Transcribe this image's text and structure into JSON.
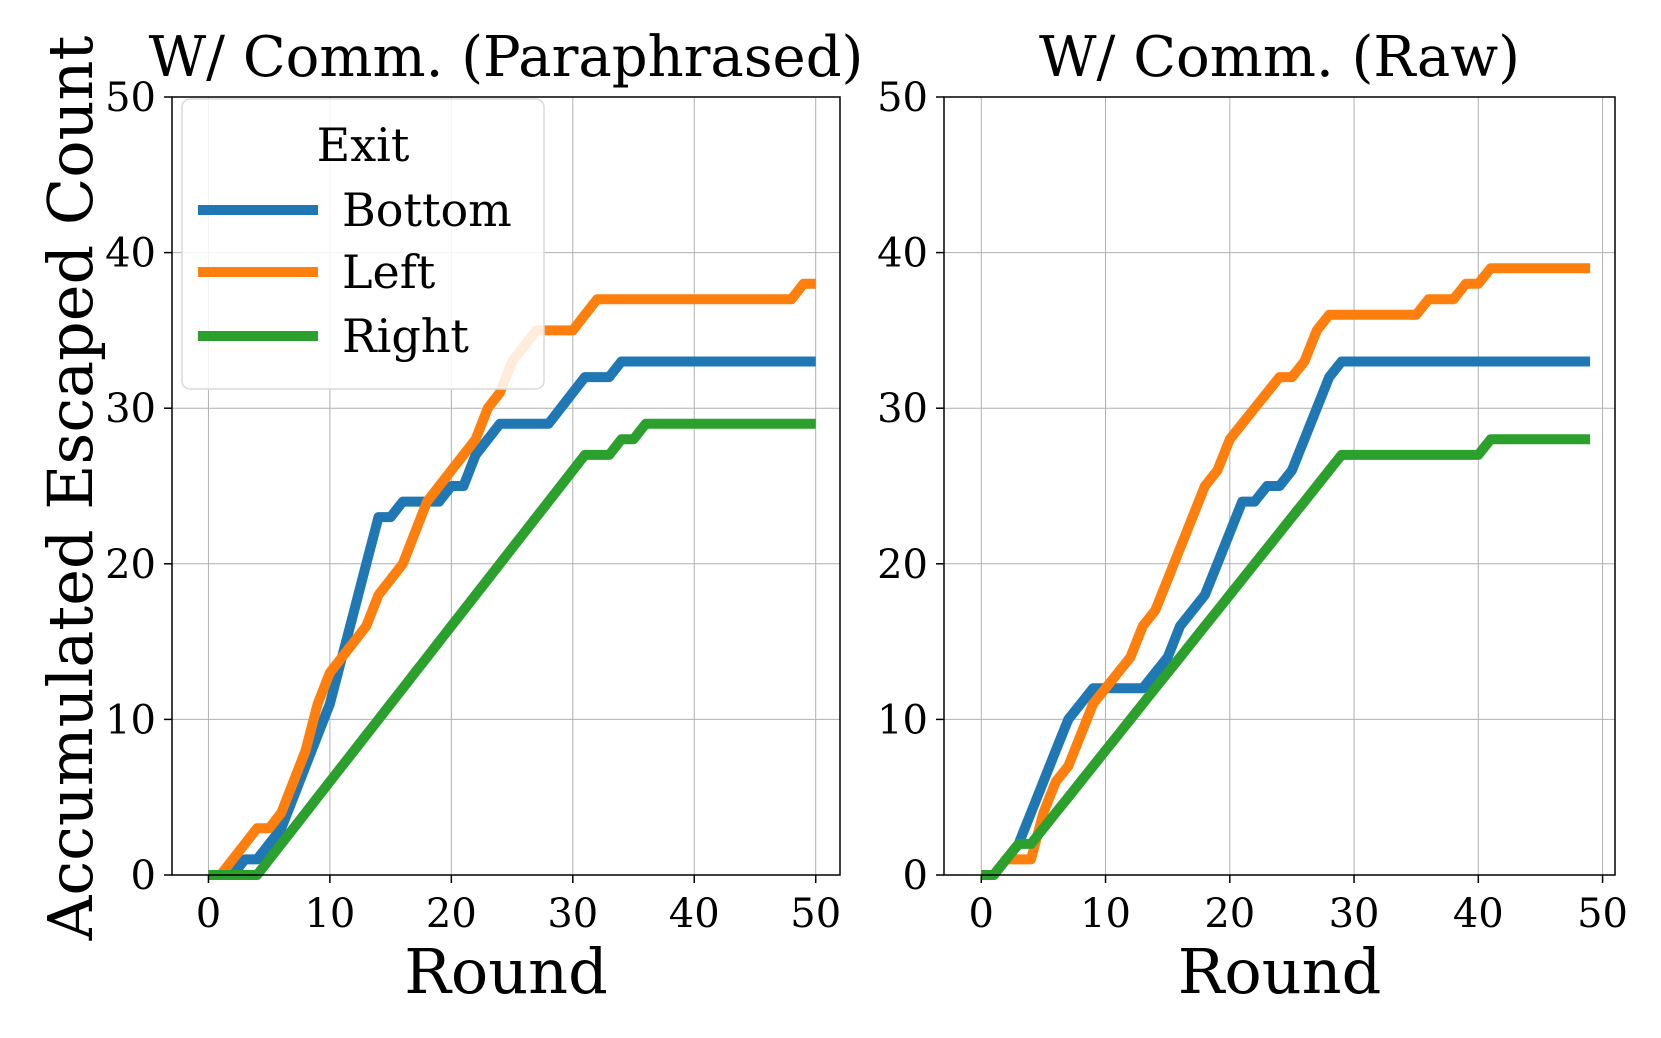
{
  "figure": {
    "ylabel": "Accumulated Escaped Count",
    "legend": {
      "title": "Exit",
      "items": [
        "Bottom",
        "Left",
        "Right"
      ]
    },
    "colors": {
      "Bottom": "#1f77b4",
      "Left": "#ff7f0e",
      "Right": "#2ca02c"
    }
  },
  "chart_data": [
    {
      "type": "line",
      "title": "W/ Comm. (Paraphrased)",
      "xlabel": "Round",
      "ylabel": "Accumulated Escaped Count",
      "xlim": [
        -3,
        52
      ],
      "ylim": [
        0,
        50
      ],
      "xticks": [
        0,
        10,
        20,
        30,
        40,
        50
      ],
      "yticks": [
        0,
        10,
        20,
        30,
        40,
        50
      ],
      "grid": true,
      "legend_position": "upper-left",
      "legend_title": "Exit",
      "series": [
        {
          "name": "Bottom",
          "x": [
            0,
            1,
            2,
            3,
            4,
            5,
            6,
            7,
            8,
            9,
            10,
            11,
            12,
            13,
            14,
            15,
            16,
            17,
            18,
            19,
            20,
            21,
            22,
            23,
            24,
            25,
            26,
            27,
            28,
            29,
            30,
            31,
            32,
            33,
            34,
            35,
            36,
            37,
            38,
            39,
            40,
            41,
            42,
            43,
            44,
            45,
            46,
            47,
            48,
            49,
            50
          ],
          "y": [
            0,
            0,
            0,
            1,
            1,
            2,
            3,
            5,
            7,
            9,
            11,
            14,
            17,
            20,
            23,
            23,
            24,
            24,
            24,
            24,
            25,
            25,
            27,
            28,
            29,
            29,
            29,
            29,
            29,
            30,
            31,
            32,
            32,
            32,
            33,
            33,
            33,
            33,
            33,
            33,
            33,
            33,
            33,
            33,
            33,
            33,
            33,
            33,
            33,
            33,
            33
          ]
        },
        {
          "name": "Left",
          "x": [
            0,
            1,
            2,
            3,
            4,
            5,
            6,
            7,
            8,
            9,
            10,
            11,
            12,
            13,
            14,
            15,
            16,
            17,
            18,
            19,
            20,
            21,
            22,
            23,
            24,
            25,
            26,
            27,
            28,
            29,
            30,
            31,
            32,
            33,
            34,
            35,
            36,
            37,
            38,
            39,
            40,
            41,
            42,
            43,
            44,
            45,
            46,
            47,
            48,
            49,
            50
          ],
          "y": [
            0,
            0,
            1,
            2,
            3,
            3,
            4,
            6,
            8,
            11,
            13,
            14,
            15,
            16,
            18,
            19,
            20,
            22,
            24,
            25,
            26,
            27,
            28,
            30,
            31,
            33,
            34,
            35,
            35,
            35,
            35,
            36,
            37,
            37,
            37,
            37,
            37,
            37,
            37,
            37,
            37,
            37,
            37,
            37,
            37,
            37,
            37,
            37,
            37,
            38,
            38
          ]
        },
        {
          "name": "Right",
          "x": [
            0,
            1,
            2,
            3,
            4,
            5,
            6,
            7,
            8,
            9,
            10,
            11,
            12,
            13,
            14,
            15,
            16,
            17,
            18,
            19,
            20,
            21,
            22,
            23,
            24,
            25,
            26,
            27,
            28,
            29,
            30,
            31,
            32,
            33,
            34,
            35,
            36,
            37,
            38,
            39,
            40,
            41,
            42,
            43,
            44,
            45,
            46,
            47,
            48,
            49,
            50
          ],
          "y": [
            0,
            0,
            0,
            0,
            0,
            1,
            2,
            3,
            4,
            5,
            6,
            7,
            8,
            9,
            10,
            11,
            12,
            13,
            14,
            15,
            16,
            17,
            18,
            19,
            20,
            21,
            22,
            23,
            24,
            25,
            26,
            27,
            27,
            27,
            28,
            28,
            29,
            29,
            29,
            29,
            29,
            29,
            29,
            29,
            29,
            29,
            29,
            29,
            29,
            29,
            29
          ]
        }
      ]
    },
    {
      "type": "line",
      "title": "W/ Comm. (Raw)",
      "xlabel": "Round",
      "ylabel": "",
      "xlim": [
        -3,
        51
      ],
      "ylim": [
        0,
        50
      ],
      "xticks": [
        0,
        10,
        20,
        30,
        40,
        50
      ],
      "yticks": [
        0,
        10,
        20,
        30,
        40,
        50
      ],
      "grid": true,
      "series": [
        {
          "name": "Bottom",
          "x": [
            0,
            1,
            2,
            3,
            4,
            5,
            6,
            7,
            8,
            9,
            10,
            11,
            12,
            13,
            14,
            15,
            16,
            17,
            18,
            19,
            20,
            21,
            22,
            23,
            24,
            25,
            26,
            27,
            28,
            29,
            30,
            31,
            32,
            33,
            34,
            35,
            36,
            37,
            38,
            39,
            40,
            41,
            42,
            43,
            44,
            45,
            46,
            47,
            48,
            49
          ],
          "y": [
            0,
            0,
            1,
            2,
            4,
            6,
            8,
            10,
            11,
            12,
            12,
            12,
            12,
            12,
            13,
            14,
            16,
            17,
            18,
            20,
            22,
            24,
            24,
            25,
            25,
            26,
            28,
            30,
            32,
            33,
            33,
            33,
            33,
            33,
            33,
            33,
            33,
            33,
            33,
            33,
            33,
            33,
            33,
            33,
            33,
            33,
            33,
            33,
            33,
            33
          ]
        },
        {
          "name": "Left",
          "x": [
            0,
            1,
            2,
            3,
            4,
            5,
            6,
            7,
            8,
            9,
            10,
            11,
            12,
            13,
            14,
            15,
            16,
            17,
            18,
            19,
            20,
            21,
            22,
            23,
            24,
            25,
            26,
            27,
            28,
            29,
            30,
            31,
            32,
            33,
            34,
            35,
            36,
            37,
            38,
            39,
            40,
            41,
            42,
            43,
            44,
            45,
            46,
            47,
            48,
            49
          ],
          "y": [
            0,
            0,
            1,
            1,
            1,
            4,
            6,
            7,
            9,
            11,
            12,
            13,
            14,
            16,
            17,
            19,
            21,
            23,
            25,
            26,
            28,
            29,
            30,
            31,
            32,
            32,
            33,
            35,
            36,
            36,
            36,
            36,
            36,
            36,
            36,
            36,
            37,
            37,
            37,
            38,
            38,
            39,
            39,
            39,
            39,
            39,
            39,
            39,
            39,
            39
          ]
        },
        {
          "name": "Right",
          "x": [
            0,
            1,
            2,
            3,
            4,
            5,
            6,
            7,
            8,
            9,
            10,
            11,
            12,
            13,
            14,
            15,
            16,
            17,
            18,
            19,
            20,
            21,
            22,
            23,
            24,
            25,
            26,
            27,
            28,
            29,
            30,
            31,
            32,
            33,
            34,
            35,
            36,
            37,
            38,
            39,
            40,
            41,
            42,
            43,
            44,
            45,
            46,
            47,
            48,
            49
          ],
          "y": [
            0,
            0,
            1,
            2,
            2,
            3,
            4,
            5,
            6,
            7,
            8,
            9,
            10,
            11,
            12,
            13,
            14,
            15,
            16,
            17,
            18,
            19,
            20,
            21,
            22,
            23,
            24,
            25,
            26,
            27,
            27,
            27,
            27,
            27,
            27,
            27,
            27,
            27,
            27,
            27,
            27,
            28,
            28,
            28,
            28,
            28,
            28,
            28,
            28,
            28
          ]
        }
      ]
    }
  ]
}
